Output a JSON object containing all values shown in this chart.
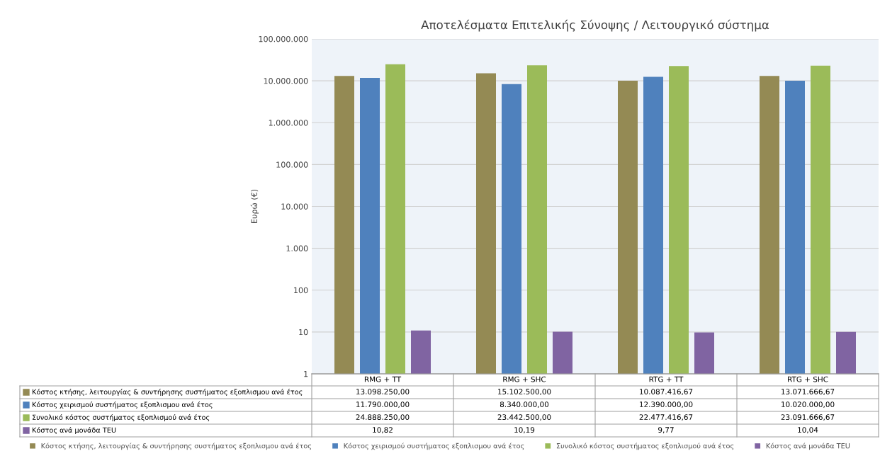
{
  "chart_data": {
    "type": "bar",
    "title": "Αποτελέσματα Επιτελικής Σύνοψης / Λειτουργικό σύστημα",
    "ylabel": "Ευρώ (€)",
    "categories": [
      "RMG + TT",
      "RMG + SHC",
      "RTG + TT",
      "RTG + SHC"
    ],
    "series": [
      {
        "name": "Κόστος κτήσης, λειτουργίας & συντήρησης συστήματος εξοπλισμου ανά έτος",
        "color": "#948a54",
        "values": [
          13098250.0,
          15102500.0,
          10087416.67,
          13071666.67
        ],
        "value_labels": [
          "13.098.250,00",
          "15.102.500,00",
          "10.087.416,67",
          "13.071.666,67"
        ]
      },
      {
        "name": "Κόστος χειρισμού συστήματος εξοπλισμου ανά έτος",
        "color": "#4f81bd",
        "values": [
          11790000.0,
          8340000.0,
          12390000.0,
          10020000.0
        ],
        "value_labels": [
          "11.790.000,00",
          "8.340.000,00",
          "12.390.000,00",
          "10.020.000,00"
        ]
      },
      {
        "name": "Συνολικό κόστος συστήματος εξοπλισμού ανά έτος",
        "color": "#9bbb59",
        "values": [
          24888250.0,
          23442500.0,
          22477416.67,
          23091666.67
        ],
        "value_labels": [
          "24.888.250,00",
          "23.442.500,00",
          "22.477.416,67",
          "23.091.666,67"
        ]
      },
      {
        "name": "Κόστος ανά μονάδα TEU",
        "color": "#8064a2",
        "values": [
          10.82,
          10.19,
          9.77,
          10.04
        ],
        "value_labels": [
          "10,82",
          "10,19",
          "9,77",
          "10,04"
        ]
      }
    ],
    "log": true,
    "ylim": [
      1,
      100000000
    ],
    "yticks": [
      1,
      10,
      100,
      {
        "value": 1000,
        "label": "1.000"
      },
      {
        "value": 10000,
        "label": "10.000"
      },
      {
        "value": 100000,
        "label": "100.000"
      },
      {
        "value": 1000000,
        "label": "1.000.000"
      },
      {
        "value": 10000000,
        "label": "10.000.000"
      },
      {
        "value": 100000000,
        "label": "100.000.000"
      }
    ],
    "grid": "y",
    "legend": "bottom"
  }
}
